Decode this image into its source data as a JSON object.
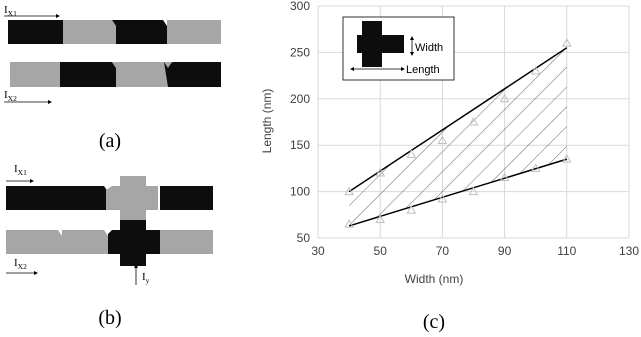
{
  "panel_a": {
    "label": "(a)",
    "current_top": {
      "base": "I",
      "sub": "X1"
    },
    "current_bottom": {
      "base": "I",
      "sub": "X2"
    }
  },
  "panel_b": {
    "label": "(b)",
    "current_top": {
      "base": "I",
      "sub": "X1"
    },
    "current_bottom": {
      "base": "I",
      "sub": "X2"
    },
    "current_y": {
      "base": "I",
      "sub": "y"
    }
  },
  "panel_c": {
    "label": "(c)",
    "inset": {
      "width_label": "Width",
      "length_label": "Length"
    }
  },
  "colors": {
    "dark": "#0d0d0d",
    "light": "#a6a6a6",
    "grid": "#d9d9d9",
    "marker": "#bfbfbf"
  },
  "chart_data": {
    "type": "scatter",
    "xlabel": "Width (nm)",
    "ylabel": "Length (nm)",
    "xlim": [
      30,
      130
    ],
    "ylim": [
      50,
      300
    ],
    "xticks": [
      30,
      50,
      70,
      90,
      110,
      130
    ],
    "yticks": [
      50,
      100,
      150,
      200,
      250,
      300
    ],
    "grid": true,
    "series": [
      {
        "x": [
          40,
          50,
          60,
          70,
          80,
          90,
          100,
          110
        ],
        "y": [
          100,
          120,
          140,
          155,
          175,
          200,
          230,
          260
        ]
      },
      {
        "x": [
          40,
          50,
          60,
          70,
          80,
          90,
          100,
          110
        ],
        "y": [
          65,
          70,
          80,
          92,
          100,
          115,
          125,
          135
        ]
      }
    ],
    "bounds": [
      {
        "x": [
          40,
          110
        ],
        "y": [
          100,
          255
        ]
      },
      {
        "x": [
          40,
          110
        ],
        "y": [
          63,
          135
        ]
      }
    ]
  }
}
